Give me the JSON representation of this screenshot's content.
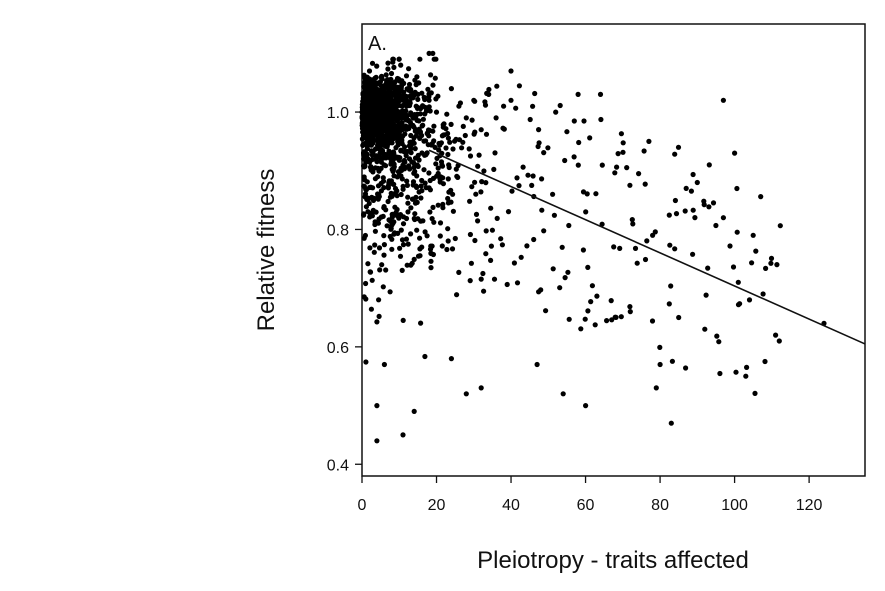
{
  "chart_data": {
    "type": "scatter",
    "panel_label": "A.",
    "xlabel": "Pleiotropy - traits affected",
    "ylabel": "Relative fitness",
    "xlim": [
      0,
      135
    ],
    "ylim": [
      0.38,
      1.15
    ],
    "x_ticks": [
      0,
      20,
      40,
      60,
      80,
      100,
      120
    ],
    "y_ticks": [
      0.4,
      0.6,
      0.8,
      1.0
    ],
    "x_tick_labels": [
      "0",
      "20",
      "40",
      "60",
      "80",
      "100",
      "120"
    ],
    "y_tick_labels": [
      "0.4",
      "0.6",
      "0.8",
      "1.0"
    ],
    "grid": false,
    "legend": "none",
    "point_color": "#000000",
    "trend_line": {
      "x": [
        18,
        135
      ],
      "y": [
        0.935,
        0.605
      ]
    },
    "points": {
      "total_count": 1500,
      "main_cluster": [
        [
          0,
          1.0
        ],
        [
          1,
          1.02
        ],
        [
          2,
          0.98
        ],
        [
          3,
          1.03
        ],
        [
          4,
          0.99
        ],
        [
          5,
          1.01
        ],
        [
          6,
          0.97
        ],
        [
          7,
          1.04
        ],
        [
          8,
          1.0
        ],
        [
          9,
          1.02
        ],
        [
          10,
          0.98
        ],
        [
          12,
          1.01
        ],
        [
          14,
          0.99
        ],
        [
          15,
          1.03
        ],
        [
          16,
          0.96
        ],
        [
          18,
          1.02
        ],
        [
          19,
          1.1
        ],
        [
          20,
          1.0
        ],
        [
          22,
          0.98
        ],
        [
          24,
          1.04
        ],
        [
          26,
          1.01
        ],
        [
          28,
          0.99
        ],
        [
          30,
          1.02
        ],
        [
          32,
          0.97
        ],
        [
          34,
          1.03
        ],
        [
          36,
          0.99
        ],
        [
          38,
          1.01
        ],
        [
          40,
          1.02
        ]
      ],
      "highlighted": [
        [
          2,
          1.07
        ],
        [
          4,
          0.44
        ],
        [
          4,
          0.5
        ],
        [
          6,
          0.57
        ],
        [
          11,
          0.45
        ],
        [
          14,
          0.49
        ],
        [
          18,
          1.1
        ],
        [
          24,
          0.58
        ],
        [
          28,
          0.52
        ],
        [
          32,
          0.53
        ],
        [
          40,
          1.07
        ],
        [
          47,
          0.57
        ],
        [
          52,
          1.0
        ],
        [
          54,
          0.52
        ],
        [
          58,
          1.03
        ],
        [
          60,
          0.5
        ],
        [
          64,
          1.03
        ],
        [
          72,
          0.66
        ],
        [
          77,
          0.95
        ],
        [
          78,
          0.79
        ],
        [
          79,
          0.53
        ],
        [
          80,
          0.57
        ],
        [
          83,
          0.47
        ],
        [
          85,
          0.65
        ],
        [
          87,
          0.87
        ],
        [
          90,
          0.88
        ],
        [
          92,
          0.63
        ],
        [
          97,
          1.02
        ],
        [
          97,
          0.82
        ],
        [
          100,
          0.93
        ],
        [
          101,
          0.71
        ],
        [
          103,
          0.55
        ],
        [
          104,
          0.68
        ],
        [
          105,
          0.79
        ],
        [
          111,
          0.62
        ],
        [
          112,
          0.61
        ],
        [
          124,
          0.64
        ]
      ]
    }
  }
}
